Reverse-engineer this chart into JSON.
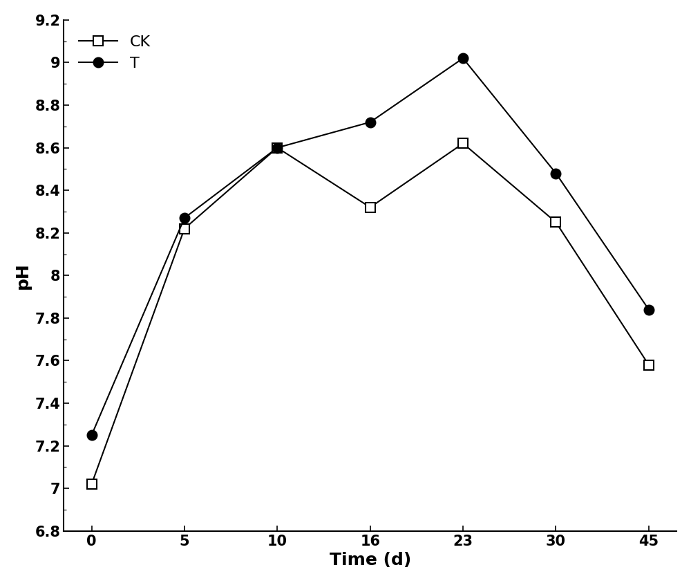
{
  "x": [
    0,
    5,
    10,
    16,
    23,
    30,
    45
  ],
  "ck_y": [
    7.02,
    8.22,
    8.6,
    8.32,
    8.62,
    8.25,
    7.58
  ],
  "t_y": [
    7.25,
    8.27,
    8.6,
    8.72,
    9.02,
    8.48,
    7.84
  ],
  "ck_label": "CK",
  "t_label": "T",
  "xlabel": "Time (d)",
  "ylabel": "pH",
  "ylim": [
    6.8,
    9.2
  ],
  "yticks": [
    6.8,
    7.0,
    7.2,
    7.4,
    7.6,
    7.8,
    8.0,
    8.2,
    8.4,
    8.6,
    8.8,
    9.0,
    9.2
  ],
  "line_color": "#000000",
  "ck_marker": "s",
  "t_marker": "o",
  "ck_marker_facecolor": "#ffffff",
  "t_marker_facecolor": "#000000",
  "marker_size": 10,
  "linewidth": 1.5,
  "legend_fontsize": 16,
  "axis_label_fontsize": 18,
  "tick_label_fontsize": 15,
  "background_color": "#ffffff"
}
